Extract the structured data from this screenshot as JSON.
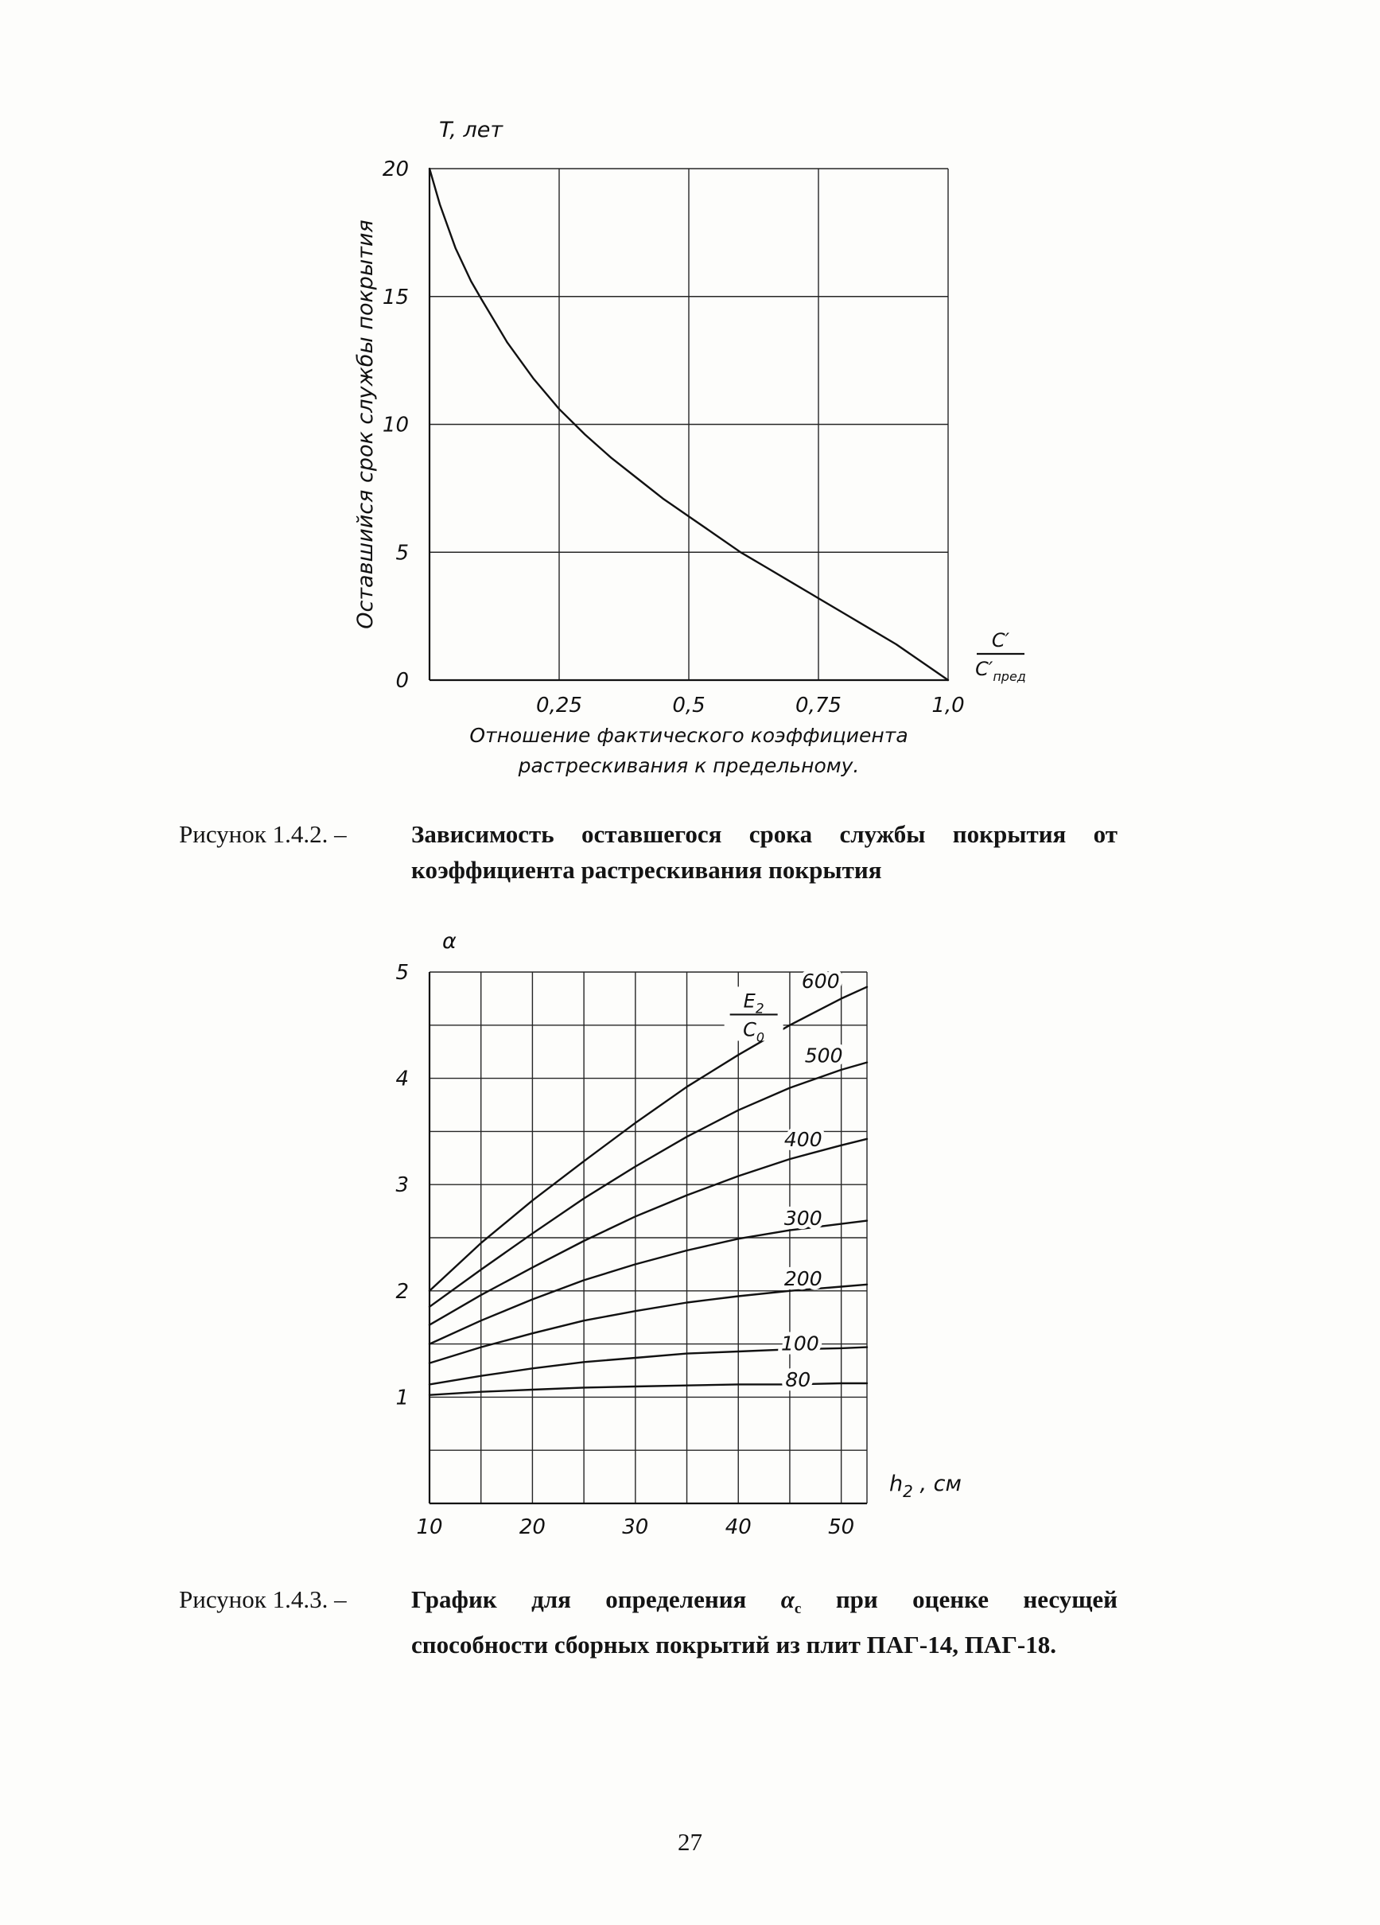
{
  "page_number": "27",
  "captions": {
    "fig1": {
      "label": "Рисунок 1.4.2. –",
      "line1": "Зависимость оставшегося срока службы покрытия от",
      "line2": "коэффициента растрескивания покрытия"
    },
    "fig2": {
      "label": "Рисунок 1.4.3. –",
      "line1_before": "График для определения",
      "alpha": "α",
      "alpha_sub": "c",
      "line1_after": "при оценке несущей",
      "line2": "способности сборных покрытий из плит ПАГ-14, ПАГ-18."
    }
  },
  "chart_data": [
    {
      "type": "line",
      "title": "Зависимость оставшегося срока службы покрытия от коэффициента растрескивания покрытия",
      "ylabel_axis": "T, лет",
      "ylabel_rotated": "Оставшийся срок службы покрытия",
      "xlabel_lines": [
        "Отношение фактического коэффициента",
        "растрескивания к предельному."
      ],
      "x_fraction": {
        "num": "C′",
        "den": "C′",
        "den_sub": "пред"
      },
      "xlim": [
        0,
        1.0
      ],
      "ylim": [
        0,
        20
      ],
      "grid": "on",
      "grid_x": [
        0.25,
        0.5,
        0.75,
        1.0
      ],
      "grid_y": [
        5,
        10,
        15,
        20
      ],
      "x_ticks": [
        {
          "v": 0.25,
          "label": "0,25"
        },
        {
          "v": 0.5,
          "label": "0,5"
        },
        {
          "v": 0.75,
          "label": "0,75"
        },
        {
          "v": 1.0,
          "label": "1,0"
        }
      ],
      "y_ticks": [
        {
          "v": 0,
          "label": "0"
        },
        {
          "v": 5,
          "label": "5"
        },
        {
          "v": 10,
          "label": "10"
        },
        {
          "v": 15,
          "label": "15"
        },
        {
          "v": 20,
          "label": "20"
        }
      ],
      "series": [
        {
          "name": "remaining-service-life",
          "x": [
            0,
            0.02,
            0.05,
            0.08,
            0.1,
            0.15,
            0.2,
            0.25,
            0.3,
            0.35,
            0.4,
            0.45,
            0.5,
            0.55,
            0.6,
            0.65,
            0.7,
            0.75,
            0.8,
            0.85,
            0.9,
            0.95,
            1.0
          ],
          "y": [
            20,
            18.6,
            16.9,
            15.6,
            14.9,
            13.2,
            11.8,
            10.6,
            9.6,
            8.7,
            7.9,
            7.1,
            6.4,
            5.7,
            5.0,
            4.4,
            3.8,
            3.2,
            2.6,
            2.0,
            1.4,
            0.7,
            0
          ]
        }
      ]
    },
    {
      "type": "line",
      "title": "График для определения αc при оценке несущей способности сборных покрытий из плит ПАГ-14, ПАГ-18",
      "ylabel_axis": "α",
      "xlabel": {
        "main": "h",
        "sub": "2",
        "rest": " , см"
      },
      "ratio_fraction": {
        "num": "E",
        "num_sub": "2",
        "den": "C",
        "den_sub": "0",
        "position": [
          41.5,
          4.6
        ]
      },
      "xlim": [
        10,
        52.5
      ],
      "ylim": [
        0,
        5
      ],
      "grid": "on",
      "grid_x": [
        10,
        15,
        20,
        25,
        30,
        35,
        40,
        45,
        50,
        52.5
      ],
      "grid_y": [
        0.5,
        1,
        1.5,
        2,
        2.5,
        3,
        3.5,
        4,
        4.5,
        5
      ],
      "x_ticks": [
        {
          "v": 10,
          "label": "10"
        },
        {
          "v": 20,
          "label": "20"
        },
        {
          "v": 30,
          "label": "30"
        },
        {
          "v": 40,
          "label": "40"
        },
        {
          "v": 50,
          "label": "50"
        }
      ],
      "y_ticks": [
        {
          "v": 1,
          "label": "1"
        },
        {
          "v": 2,
          "label": "2"
        },
        {
          "v": 3,
          "label": "3"
        },
        {
          "v": 4,
          "label": "4"
        },
        {
          "v": 5,
          "label": "5"
        }
      ],
      "series": [
        {
          "name": "E2C0-600",
          "label": "600",
          "label_at": [
            48,
            4.85
          ],
          "x": [
            10,
            15,
            20,
            25,
            30,
            35,
            40,
            45,
            50,
            52.5
          ],
          "y": [
            2.0,
            2.45,
            2.85,
            3.22,
            3.58,
            3.92,
            4.22,
            4.5,
            4.75,
            4.86
          ]
        },
        {
          "name": "E2C0-500",
          "label": "500",
          "label_at": [
            48.3,
            4.15
          ],
          "x": [
            10,
            15,
            20,
            25,
            30,
            35,
            40,
            45,
            50,
            52.5
          ],
          "y": [
            1.85,
            2.2,
            2.54,
            2.87,
            3.17,
            3.45,
            3.7,
            3.91,
            4.08,
            4.15
          ]
        },
        {
          "name": "E2C0-400",
          "label": "400",
          "label_at": [
            46.3,
            3.36
          ],
          "x": [
            10,
            15,
            20,
            25,
            30,
            35,
            40,
            45,
            50,
            52.5
          ],
          "y": [
            1.68,
            1.96,
            2.22,
            2.47,
            2.7,
            2.9,
            3.08,
            3.24,
            3.37,
            3.43
          ]
        },
        {
          "name": "E2C0-300",
          "label": "300",
          "label_at": [
            46.3,
            2.62
          ],
          "x": [
            10,
            15,
            20,
            25,
            30,
            35,
            40,
            45,
            50,
            52.5
          ],
          "y": [
            1.5,
            1.72,
            1.92,
            2.1,
            2.25,
            2.38,
            2.49,
            2.57,
            2.63,
            2.66
          ]
        },
        {
          "name": "E2C0-200",
          "label": "200",
          "label_at": [
            46.3,
            2.05
          ],
          "x": [
            10,
            15,
            20,
            25,
            30,
            35,
            40,
            45,
            50,
            52.5
          ],
          "y": [
            1.32,
            1.47,
            1.6,
            1.72,
            1.81,
            1.89,
            1.95,
            2.0,
            2.04,
            2.06
          ]
        },
        {
          "name": "E2C0-100",
          "label": "100",
          "label_at": [
            46,
            1.44
          ],
          "x": [
            10,
            15,
            20,
            25,
            30,
            35,
            40,
            45,
            50,
            52.5
          ],
          "y": [
            1.12,
            1.2,
            1.27,
            1.33,
            1.37,
            1.41,
            1.43,
            1.45,
            1.46,
            1.47
          ]
        },
        {
          "name": "E2C0-80",
          "label": "80",
          "label_at": [
            45.8,
            1.1
          ],
          "x": [
            10,
            15,
            20,
            25,
            30,
            35,
            40,
            45,
            50,
            52.5
          ],
          "y": [
            1.02,
            1.05,
            1.07,
            1.09,
            1.1,
            1.11,
            1.12,
            1.12,
            1.13,
            1.13
          ]
        }
      ]
    }
  ]
}
